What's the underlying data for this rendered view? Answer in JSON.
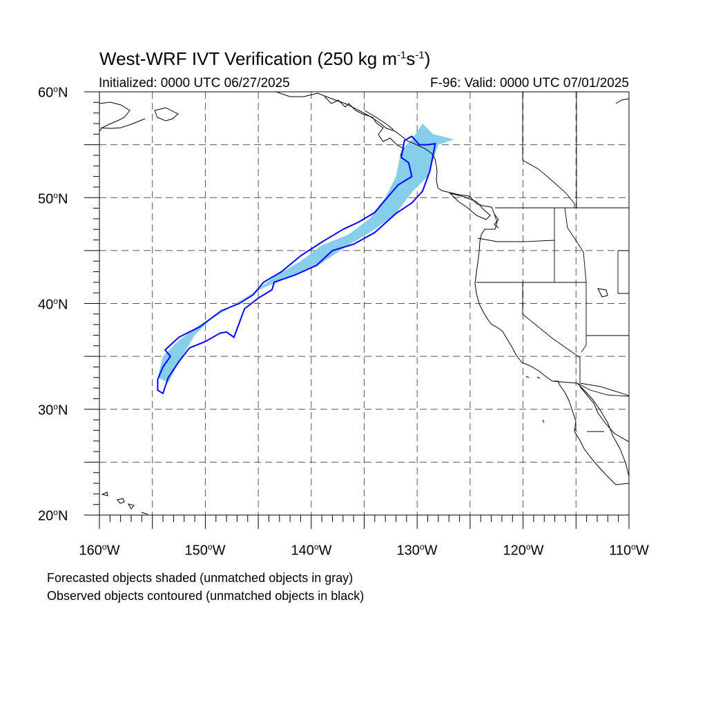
{
  "title": {
    "text": "West-WRF IVT Verification (250 kg m",
    "sup1": "-1",
    "mid": "s",
    "sup2": "-1",
    "end": ")"
  },
  "subtitle_left": "Initialized: 0000 UTC 06/27/2025",
  "subtitle_right": "F-96: Valid: 0000 UTC 07/01/2025",
  "lat_labels": [
    {
      "num": "60",
      "hemi": "N"
    },
    {
      "num": "50",
      "hemi": "N"
    },
    {
      "num": "40",
      "hemi": "N"
    },
    {
      "num": "30",
      "hemi": "N"
    },
    {
      "num": "20",
      "hemi": "N"
    }
  ],
  "lon_labels": [
    {
      "num": "160",
      "hemi": "W"
    },
    {
      "num": "150",
      "hemi": "W"
    },
    {
      "num": "140",
      "hemi": "W"
    },
    {
      "num": "130",
      "hemi": "W"
    },
    {
      "num": "120",
      "hemi": "W"
    },
    {
      "num": "110",
      "hemi": "W"
    }
  ],
  "legend_notes": [
    "Forecasted objects shaded (unmatched objects in gray)",
    "Observed objects contoured (unmatched objects in black)"
  ],
  "map_data": {
    "extent": {
      "lon": [
        -160,
        -110
      ],
      "lat": [
        20,
        60
      ]
    },
    "grid_spacing_deg": 5,
    "colors": {
      "forecast_fill": "#87ceeb",
      "observed_contour": "#0000ff",
      "coastline": "#000000",
      "grid": "#555555"
    },
    "forecast_object": [
      [
        -154.5,
        33.0
      ],
      [
        -154.0,
        35.0
      ],
      [
        -152.5,
        36.5
      ],
      [
        -150.5,
        38.0
      ],
      [
        -148.0,
        39.5
      ],
      [
        -145.5,
        41.0
      ],
      [
        -143.5,
        42.5
      ],
      [
        -141.0,
        44.0
      ],
      [
        -139.0,
        45.5
      ],
      [
        -136.5,
        46.5
      ],
      [
        -134.5,
        48.0
      ],
      [
        -133.0,
        50.0
      ],
      [
        -132.0,
        52.0
      ],
      [
        -131.5,
        54.5
      ],
      [
        -130.5,
        55.5
      ],
      [
        -129.5,
        57.0
      ],
      [
        -128.5,
        56.0
      ],
      [
        -126.5,
        55.5
      ],
      [
        -128.0,
        55.0
      ],
      [
        -128.5,
        53.5
      ],
      [
        -129.0,
        52.0
      ],
      [
        -130.5,
        50.5
      ],
      [
        -132.0,
        48.5
      ],
      [
        -134.0,
        47.0
      ],
      [
        -136.5,
        45.5
      ],
      [
        -139.5,
        43.5
      ],
      [
        -142.0,
        42.5
      ],
      [
        -144.5,
        41.5
      ],
      [
        -147.0,
        40.0
      ],
      [
        -149.5,
        38.5
      ],
      [
        -151.0,
        37.0
      ],
      [
        -152.5,
        34.5
      ],
      [
        -153.5,
        32.5
      ]
    ],
    "observed_object": [
      [
        -154.5,
        32.8
      ],
      [
        -154.0,
        34.0
      ],
      [
        -153.3,
        35.0
      ],
      [
        -153.8,
        35.6
      ],
      [
        -152.5,
        36.8
      ],
      [
        -150.5,
        37.8
      ],
      [
        -148.5,
        39.3
      ],
      [
        -146.8,
        40.0
      ],
      [
        -145.5,
        40.8
      ],
      [
        -144.5,
        42.0
      ],
      [
        -142.8,
        43.0
      ],
      [
        -141.0,
        44.5
      ],
      [
        -139.0,
        45.8
      ],
      [
        -137.0,
        47.0
      ],
      [
        -135.5,
        47.7
      ],
      [
        -134.0,
        48.6
      ],
      [
        -133.0,
        49.8
      ],
      [
        -131.8,
        51.2
      ],
      [
        -130.5,
        52.0
      ],
      [
        -130.8,
        53.3
      ],
      [
        -131.5,
        53.8
      ],
      [
        -131.2,
        55.4
      ],
      [
        -130.5,
        55.8
      ],
      [
        -129.8,
        55.0
      ],
      [
        -129.0,
        55.0
      ],
      [
        -128.3,
        55.1
      ],
      [
        -128.5,
        54.0
      ],
      [
        -128.8,
        52.5
      ],
      [
        -129.5,
        50.6
      ],
      [
        -130.5,
        49.5
      ],
      [
        -132.0,
        48.5
      ],
      [
        -134.0,
        46.7
      ],
      [
        -136.0,
        45.6
      ],
      [
        -138.0,
        45.0
      ],
      [
        -139.5,
        43.6
      ],
      [
        -141.5,
        42.7
      ],
      [
        -143.5,
        42.0
      ],
      [
        -143.7,
        41.3
      ],
      [
        -145.0,
        40.5
      ],
      [
        -146.3,
        39.5
      ],
      [
        -147.3,
        36.8
      ],
      [
        -148.0,
        37.3
      ],
      [
        -148.6,
        37.2
      ],
      [
        -150.0,
        36.4
      ],
      [
        -151.5,
        35.8
      ],
      [
        -152.5,
        34.5
      ],
      [
        -153.5,
        33.0
      ],
      [
        -154.0,
        31.5
      ],
      [
        -154.5,
        31.8
      ]
    ]
  }
}
